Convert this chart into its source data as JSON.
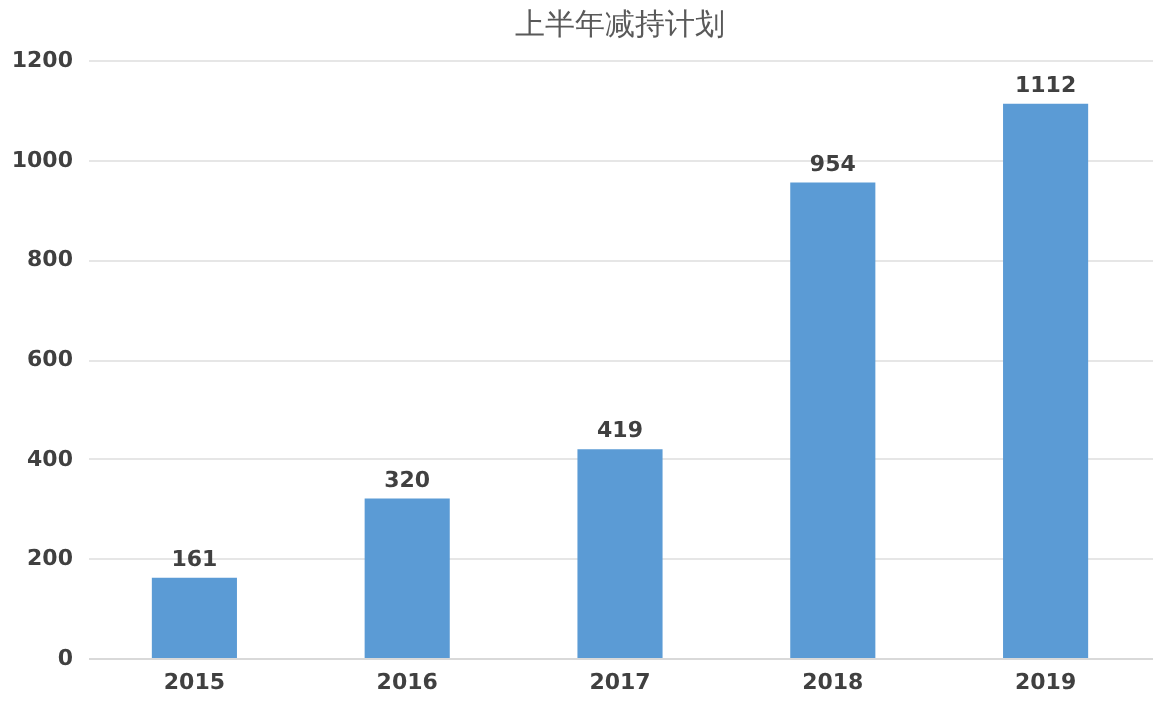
{
  "chart_data": {
    "type": "bar",
    "title": "上半年减持计划",
    "categories": [
      "2015",
      "2016",
      "2017",
      "2018",
      "2019"
    ],
    "values": [
      161,
      320,
      419,
      954,
      1112
    ],
    "color": "#5b9bd5",
    "ylim": [
      0,
      1200
    ],
    "yticks": [
      0,
      200,
      400,
      600,
      800,
      1000,
      1200
    ],
    "grid": "y",
    "data_labels": true
  }
}
